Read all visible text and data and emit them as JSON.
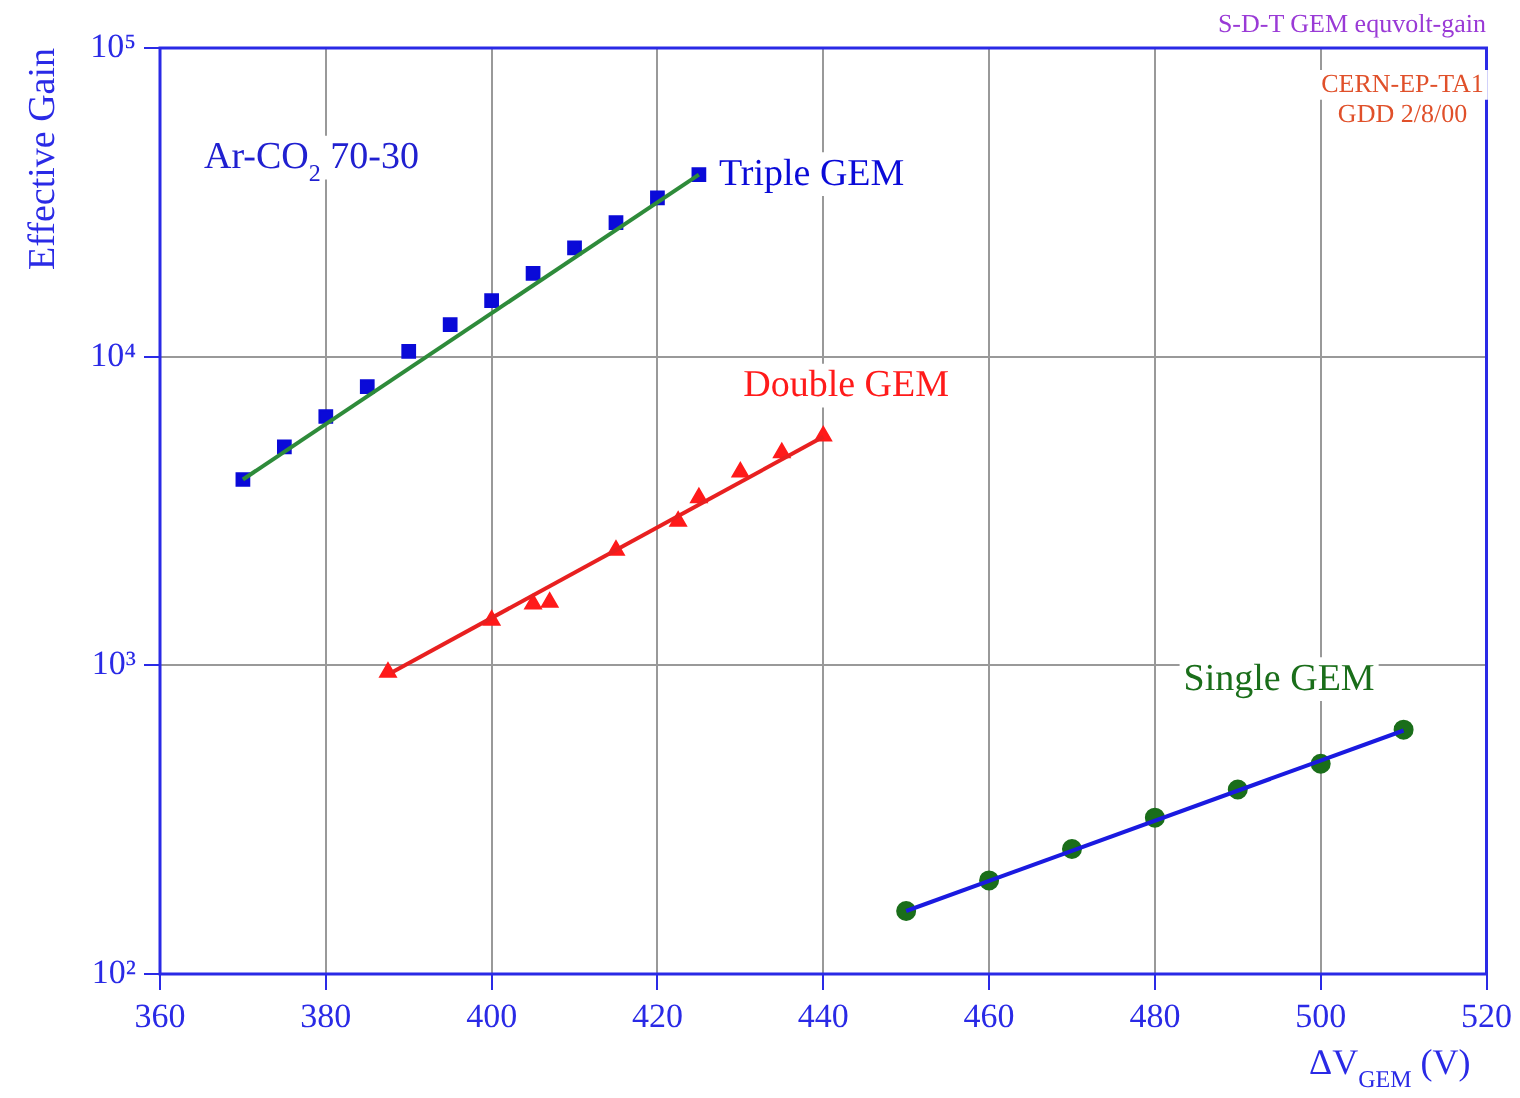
{
  "chart_data": {
    "type": "scatter",
    "xlabel": "ΔV$_{GEM}$ (V)",
    "ylabel": "Effective Gain",
    "annotations": [
      "S-D-T GEM equvolt-gain",
      "CERN-EP-TA1\nGDD 2/8/00",
      "Ar-CO$_{2}$ 70-30"
    ],
    "xlim": [
      360,
      520
    ],
    "xticks": [
      360,
      380,
      400,
      420,
      440,
      460,
      480,
      500,
      520
    ],
    "ylim": [
      100,
      100000
    ],
    "yticks": [
      {
        "value": 100,
        "label": "10²"
      },
      {
        "value": 1000,
        "label": "10³"
      },
      {
        "value": 10000,
        "label": "10⁴"
      },
      {
        "value": 100000,
        "label": "10⁵"
      }
    ],
    "log": "y",
    "grid": true,
    "legend": false,
    "series": [
      {
        "type": "line",
        "color": "#2e8b3a",
        "marker": "none",
        "x": [
          370,
          425
        ],
        "values": [
          4000,
          38900
        ]
      },
      {
        "type": "line",
        "color": "#e82020",
        "marker": "none",
        "x": [
          388,
          440
        ],
        "values": [
          950,
          5500
        ]
      },
      {
        "type": "line",
        "color": "#1a1ae0",
        "marker": "none",
        "x": [
          450,
          510
        ],
        "values": [
          160,
          615
        ]
      },
      {
        "name": "Triple GEM",
        "type": "scatter",
        "color": "#0a0ad8",
        "marker": "square",
        "x": [
          370,
          375,
          380,
          385,
          390,
          395,
          400,
          405,
          410,
          415,
          420,
          425
        ],
        "values": [
          4000,
          5100,
          6400,
          8000,
          10400,
          12700,
          15200,
          18600,
          22500,
          27200,
          32700,
          38900
        ]
      },
      {
        "name": "Double GEM",
        "type": "scatter",
        "color": "#ff1a1a",
        "marker": "triangle",
        "x": [
          387.5,
          400,
          405,
          407,
          415,
          422.5,
          425,
          430,
          435,
          440
        ],
        "values": [
          950,
          1400,
          1580,
          1600,
          2360,
          2930,
          3490,
          4230,
          4880,
          5530
        ]
      },
      {
        "name": "Single GEM",
        "type": "scatter",
        "color": "#1a6e1a",
        "marker": "circle",
        "x": [
          450,
          460,
          470,
          480,
          490,
          500,
          510
        ],
        "values": [
          160,
          201,
          254,
          321,
          396,
          480,
          619
        ]
      }
    ]
  }
}
